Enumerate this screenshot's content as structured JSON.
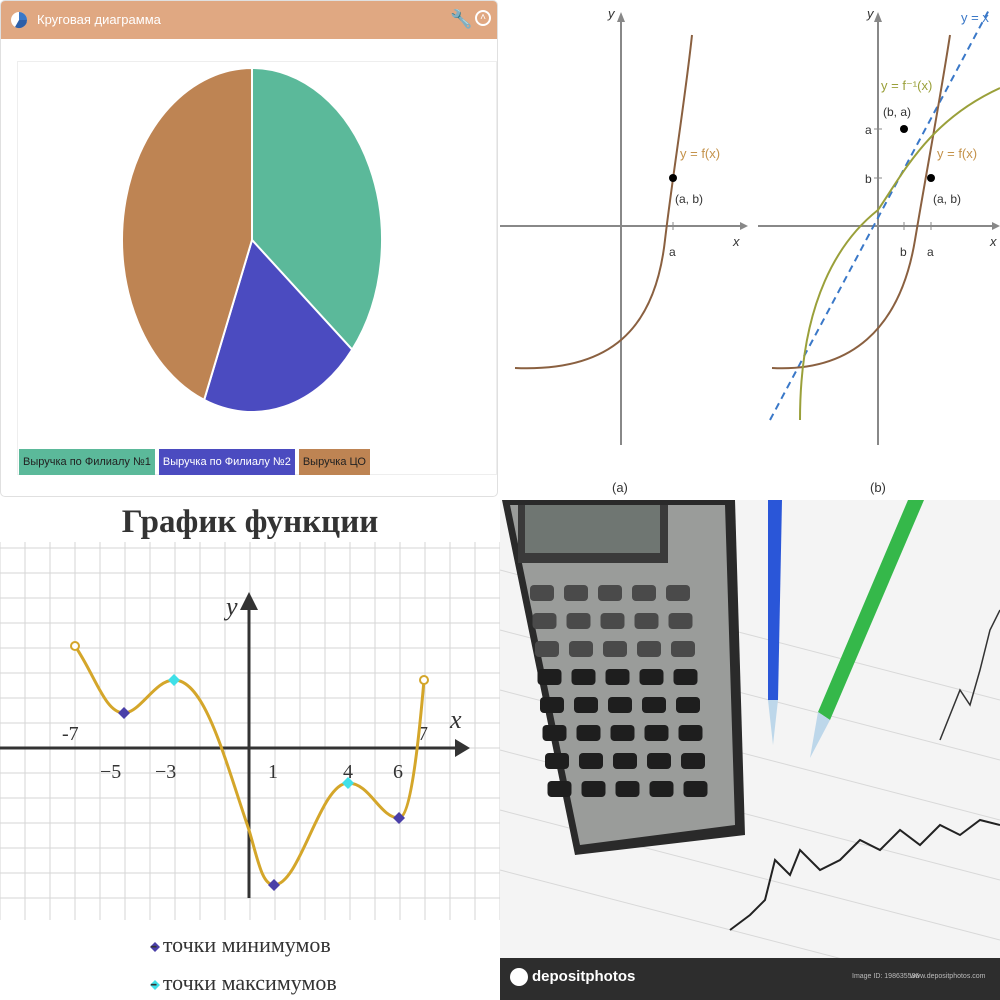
{
  "widget": {
    "title": "Круговая диаграмма",
    "icons": [
      "pie-chart-icon",
      "wrench-icon",
      "collapse-icon"
    ],
    "legend": [
      {
        "label": "Выручка по Филиалу №1",
        "color": "#5bb99a"
      },
      {
        "label": "Выручка по Филиалу №2",
        "color": "#4b4bc0"
      },
      {
        "label": "Выручка ЦО",
        "color": "#be8453"
      }
    ],
    "chart_data": {
      "type": "pie",
      "slices": [
        {
          "label": "Выручка по Филиалу №1",
          "value": 36,
          "color": "#5bb99a"
        },
        {
          "label": "Выручка по Филиалу №2",
          "value": 20,
          "color": "#4b4bc0"
        },
        {
          "label": "Выручка ЦО",
          "value": 44,
          "color": "#be8453"
        }
      ]
    }
  },
  "inverse_figure": {
    "panel_a": {
      "caption": "(a)",
      "curve_label": "y = f(x)",
      "point_label": "(a, b)",
      "x_tick": "a",
      "axis_x": "x",
      "axis_y": "y"
    },
    "panel_b": {
      "caption": "(b)",
      "inverse_label": "y = f⁻¹(x)",
      "curve_label": "y = f(x)",
      "line_label": "y = x",
      "point_ba": "(b, a)",
      "point_ab": "(a, b)",
      "y_tick_a": "a",
      "y_tick_b": "b",
      "x_tick_b": "b",
      "x_tick_a": "a",
      "axis_x": "x",
      "axis_y": "y"
    }
  },
  "function_graph": {
    "title": "График функции",
    "axis_x": "x",
    "axis_y": "y",
    "tick_labels": [
      "-7",
      "−5",
      "−3",
      "1",
      "4",
      "6",
      "7"
    ],
    "legend_min": "- точки минимумов",
    "legend_max": "- точки максимумов",
    "min_color": "#4a3fa8",
    "max_color": "#3fe0e8",
    "curve_color": "#d4a62a"
  },
  "photo": {
    "brand": "depositphotos",
    "image_id": "Image ID: 198635536",
    "url": "www.depositphotos.com"
  }
}
